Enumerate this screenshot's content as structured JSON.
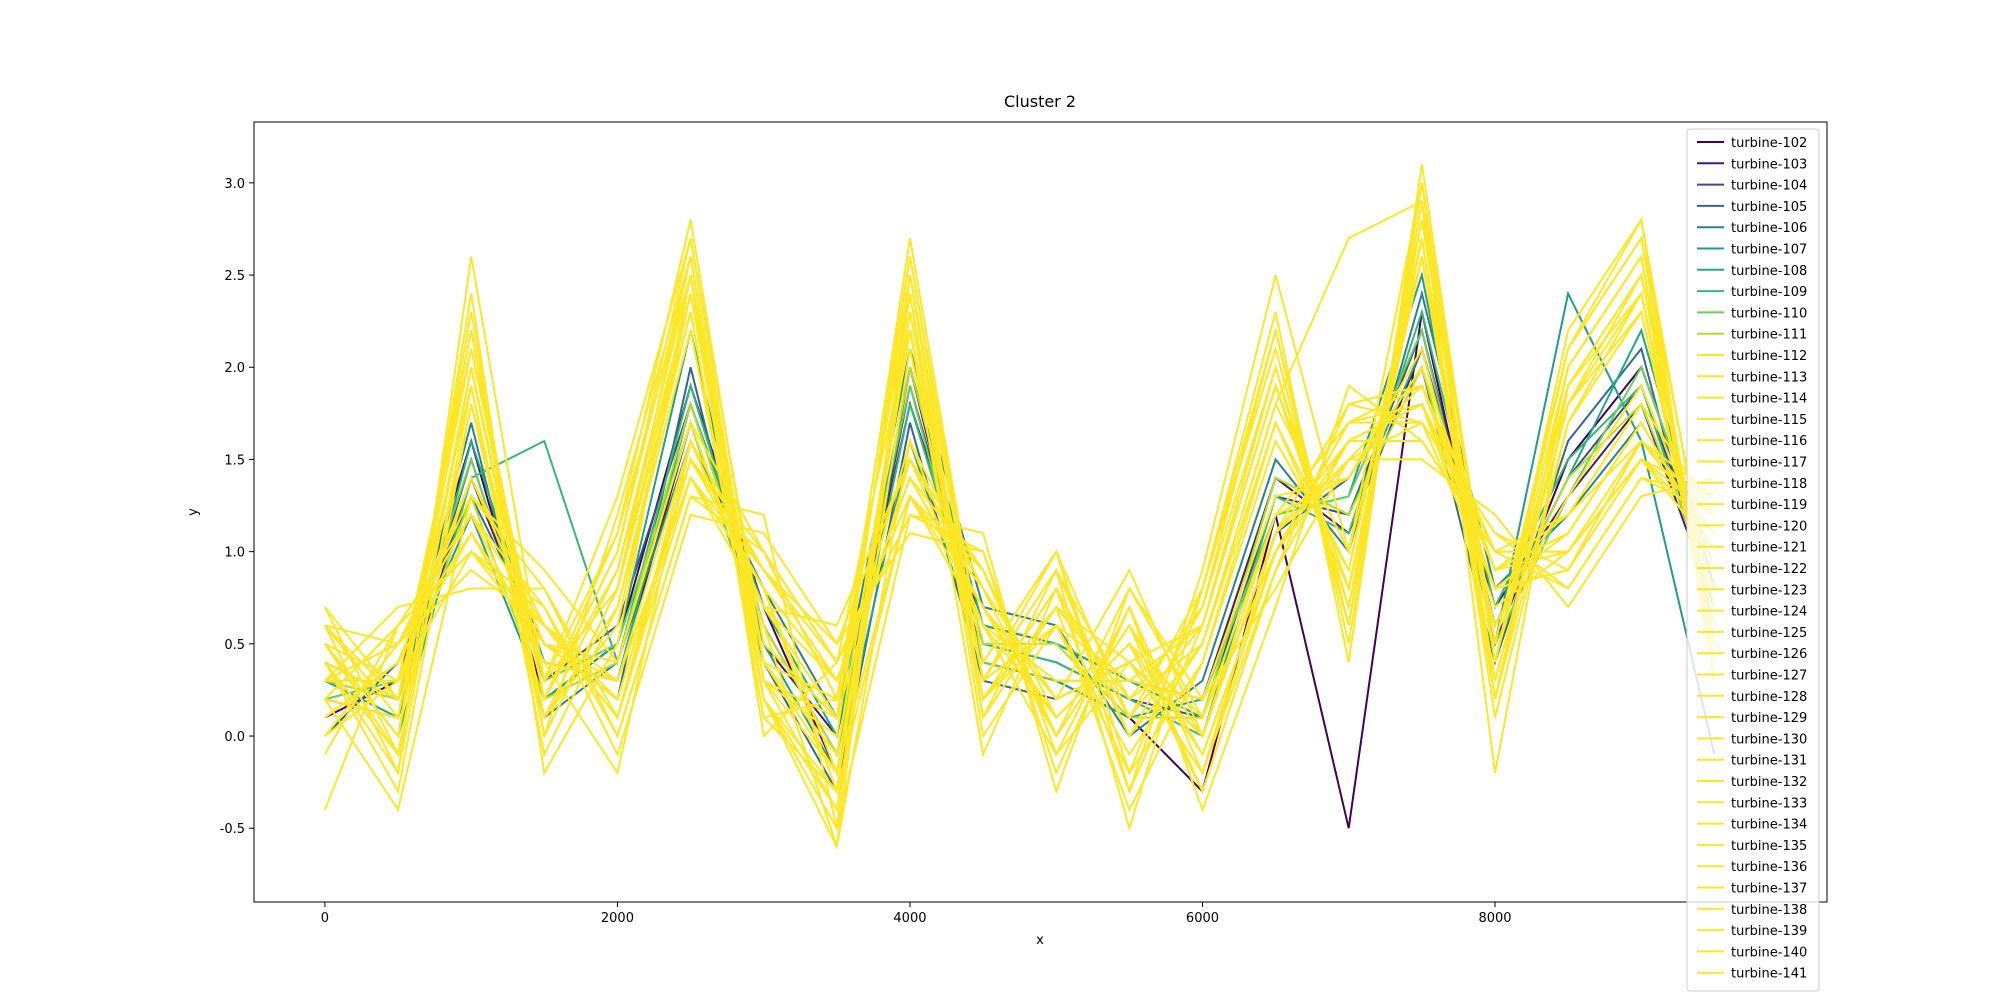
{
  "chart_data": {
    "type": "line",
    "title": "Cluster 2",
    "x_label": "x",
    "y_label": "y",
    "x": [
      0,
      500,
      1000,
      1500,
      2000,
      2500,
      3000,
      3500,
      4000,
      4500,
      5000,
      5500,
      6000,
      6500,
      7000,
      7500,
      8000,
      8500,
      9000,
      9500
    ],
    "xlim": [
      -485,
      10270
    ],
    "xticks": [
      0,
      2000,
      4000,
      6000,
      8000
    ],
    "ylim": [
      -0.9,
      3.33
    ],
    "yticks": [
      -0.5,
      {
        "value": 0,
        "label": "0.0"
      },
      0.5,
      {
        "value": 1,
        "label": "1.0"
      },
      1.5,
      {
        "value": 2,
        "label": "2.0"
      },
      2.5,
      {
        "value": 3,
        "label": "3.0"
      }
    ],
    "legend": "upper right",
    "series": [
      {
        "name": "turbine-102",
        "color": "#440154",
        "values": [
          0.1,
          0.3,
          1.6,
          0.2,
          0.5,
          1.9,
          0.7,
          -0.2,
          2.0,
          0.4,
          0.3,
          0.1,
          -0.3,
          1.2,
          -0.5,
          2.3,
          0.5,
          1.5,
          2.0,
          0.9
        ]
      },
      {
        "name": "turbine-103",
        "color": "#481a6c",
        "values": [
          0.2,
          0.1,
          1.4,
          0.4,
          0.3,
          1.7,
          0.5,
          0.0,
          1.8,
          0.6,
          0.5,
          0.3,
          0.2,
          1.4,
          1.1,
          2.1,
          0.7,
          1.3,
          1.8,
          0.7
        ]
      },
      {
        "name": "turbine-104",
        "color": "#3e4989",
        "values": [
          0.3,
          0.2,
          1.5,
          0.3,
          0.6,
          1.8,
          0.6,
          -0.1,
          1.9,
          0.5,
          0.4,
          0.2,
          0.1,
          1.3,
          1.2,
          2.2,
          0.6,
          1.4,
          1.9,
          0.8
        ]
      },
      {
        "name": "turbine-105",
        "color": "#31688e",
        "values": [
          0.0,
          0.4,
          1.3,
          0.5,
          0.2,
          2.0,
          0.4,
          -0.3,
          1.7,
          0.3,
          0.2,
          0.4,
          0.0,
          1.1,
          1.4,
          2.0,
          0.4,
          1.6,
          2.1,
          0.6
        ]
      },
      {
        "name": "turbine-106",
        "color": "#26828e",
        "values": [
          0.4,
          0.2,
          1.7,
          0.1,
          0.4,
          1.6,
          0.8,
          0.1,
          2.1,
          0.7,
          0.6,
          0.0,
          0.3,
          1.5,
          1.0,
          2.4,
          0.8,
          1.2,
          1.7,
          1.0
        ]
      },
      {
        "name": "turbine-107",
        "color": "#1f9e89",
        "values": [
          0.2,
          0.3,
          1.2,
          0.2,
          0.5,
          2.2,
          0.5,
          -0.2,
          1.6,
          0.4,
          0.3,
          0.1,
          0.2,
          1.2,
          1.3,
          2.5,
          0.5,
          2.4,
          1.6,
          -0.1
        ]
      },
      {
        "name": "turbine-108",
        "color": "#22a884",
        "values": [
          0.3,
          0.1,
          1.6,
          0.4,
          0.3,
          1.8,
          0.7,
          0.0,
          2.0,
          0.6,
          0.5,
          0.3,
          0.1,
          1.4,
          1.2,
          2.1,
          0.6,
          1.4,
          2.2,
          0.8
        ]
      },
      {
        "name": "turbine-109",
        "color": "#35b779",
        "values": [
          0.5,
          0.0,
          1.4,
          1.6,
          0.4,
          1.9,
          0.6,
          -0.1,
          1.8,
          0.5,
          0.4,
          0.2,
          0.0,
          1.3,
          1.1,
          2.3,
          0.7,
          1.5,
          1.9,
          0.7
        ]
      },
      {
        "name": "turbine-110",
        "color": "#6ece58",
        "values": [
          0.2,
          0.3,
          1.5,
          0.3,
          0.5,
          1.7,
          0.5,
          0.1,
          1.9,
          0.4,
          0.3,
          0.3,
          0.2,
          1.2,
          1.3,
          2.2,
          0.5,
          1.3,
          2.0,
          0.9
        ]
      },
      {
        "name": "turbine-111",
        "color": "#b5de2b",
        "values": [
          0.3,
          0.2,
          1.3,
          0.2,
          0.4,
          1.8,
          0.6,
          -0.1,
          2.0,
          0.5,
          0.5,
          0.1,
          0.1,
          1.4,
          1.2,
          2.0,
          0.6,
          1.4,
          1.8,
          0.8
        ]
      },
      {
        "name": "turbine-112",
        "color": "#fde725",
        "values": [
          0.4,
          -0.3,
          1.8,
          0.1,
          0.6,
          2.4,
          0.3,
          -0.4,
          2.3,
          0.2,
          0.6,
          -0.2,
          0.4,
          1.7,
          0.8,
          2.6,
          0.3,
          1.8,
          2.3,
          0.5
        ]
      },
      {
        "name": "turbine-113",
        "color": "#fde725",
        "values": [
          0.6,
          0.5,
          0.9,
          0.6,
          0.2,
          1.5,
          0.9,
          0.3,
          1.4,
          0.9,
          0.1,
          0.5,
          -0.3,
          0.9,
          1.6,
          1.8,
          0.9,
          1.0,
          1.5,
          1.2
        ]
      },
      {
        "name": "turbine-114",
        "color": "#fde725",
        "values": [
          0.2,
          0.1,
          2.2,
          0.0,
          0.8,
          2.6,
          0.2,
          -0.6,
          2.5,
          0.1,
          0.7,
          0.4,
          0.6,
          2.0,
          0.6,
          2.9,
          0.2,
          2.0,
          2.6,
          0.4
        ]
      },
      {
        "name": "turbine-115",
        "color": "#fde725",
        "values": [
          -0.4,
          0.6,
          1.0,
          0.7,
          -0.1,
          1.2,
          1.1,
          0.5,
          1.1,
          1.0,
          -0.2,
          0.7,
          -0.4,
          0.7,
          1.9,
          1.6,
          1.0,
          0.8,
          1.4,
          1.3
        ]
      },
      {
        "name": "turbine-116",
        "color": "#fde725",
        "values": [
          0.7,
          -0.1,
          2.0,
          0.2,
          1.1,
          2.8,
          0.4,
          0.2,
          2.6,
          0.3,
          0.9,
          -0.5,
          0.8,
          2.3,
          0.4,
          3.1,
          0.4,
          2.2,
          2.8,
          0.3
        ]
      },
      {
        "name": "turbine-117",
        "color": "#fde725",
        "values": [
          0.1,
          0.4,
          1.1,
          0.5,
          0.3,
          1.4,
          0.8,
          -0.2,
          1.3,
          0.7,
          0.0,
          0.6,
          -0.1,
          1.0,
          1.7,
          1.7,
          1.1,
          0.9,
          1.6,
          1.1
        ]
      },
      {
        "name": "turbine-118",
        "color": "#fde725",
        "values": [
          0.5,
          0.0,
          2.4,
          -0.2,
          0.5,
          2.5,
          0.0,
          0.4,
          2.2,
          -0.1,
          0.8,
          0.0,
          0.5,
          1.8,
          2.7,
          2.9,
          -0.2,
          1.9,
          2.5,
          0.6
        ]
      },
      {
        "name": "turbine-119",
        "color": "#fde725",
        "values": [
          0.3,
          0.7,
          0.8,
          0.8,
          0.0,
          1.3,
          1.2,
          -0.5,
          1.2,
          1.1,
          -0.3,
          0.8,
          0.2,
          0.8,
          1.5,
          1.5,
          1.2,
          0.7,
          1.3,
          1.4
        ]
      },
      {
        "name": "turbine-120",
        "color": "#fde725",
        "values": [
          0.6,
          -0.2,
          2.6,
          0.3,
          1.3,
          2.7,
          0.5,
          0.1,
          2.7,
          0.4,
          1.0,
          -0.3,
          0.9,
          2.5,
          1.0,
          3.0,
          0.5,
          2.1,
          2.7,
          0.7
        ]
      },
      {
        "name": "turbine-121",
        "color": "#fde725",
        "values": [
          0.0,
          0.5,
          1.2,
          0.4,
          -0.2,
          1.6,
          0.7,
          0.6,
          1.5,
          0.6,
          -0.1,
          0.4,
          -0.2,
          1.1,
          1.8,
          1.9,
          0.8,
          1.1,
          1.7,
          1.0
        ]
      },
      {
        "name": "turbine-122",
        "color": "#fde725",
        "values": [
          0.4,
          0.2,
          1.9,
          -0.1,
          0.7,
          2.3,
          0.1,
          -0.3,
          2.4,
          0.0,
          0.6,
          0.3,
          0.6,
          1.9,
          0.7,
          2.7,
          0.1,
          1.7,
          2.4,
          0.4
        ]
      },
      {
        "name": "turbine-123",
        "color": "#fde725",
        "values": [
          0.2,
          -0.4,
          1.3,
          0.9,
          0.4,
          1.7,
          1.0,
          0.2,
          1.6,
          0.8,
          0.2,
          0.9,
          0.0,
          1.2,
          1.4,
          2.0,
          0.9,
          1.2,
          1.8,
          1.2
        ]
      },
      {
        "name": "turbine-124",
        "color": "#fde725",
        "values": [
          0.5,
          0.3,
          2.1,
          0.2,
          0.9,
          2.5,
          0.3,
          -0.2,
          2.2,
          0.2,
          0.7,
          -0.4,
          0.4,
          1.6,
          0.9,
          2.8,
          0.4,
          1.9,
          2.5,
          0.5
        ]
      },
      {
        "name": "turbine-125",
        "color": "#fde725",
        "values": [
          -0.1,
          0.6,
          1.0,
          0.6,
          0.1,
          1.4,
          0.9,
          0.4,
          1.3,
          0.9,
          0.0,
          0.6,
          -0.3,
          0.9,
          1.6,
          1.6,
          1.0,
          1.0,
          1.5,
          1.3
        ]
      },
      {
        "name": "turbine-126",
        "color": "#fde725",
        "values": [
          0.6,
          0.1,
          2.3,
          0.0,
          1.2,
          2.6,
          0.2,
          -0.5,
          2.5,
          0.1,
          0.9,
          0.2,
          0.7,
          2.2,
          0.5,
          3.0,
          0.2,
          2.0,
          2.6,
          0.3
        ]
      },
      {
        "name": "turbine-127",
        "color": "#fde725",
        "values": [
          0.3,
          0.5,
          1.1,
          0.5,
          0.2,
          1.5,
          0.8,
          0.3,
          1.4,
          0.7,
          0.1,
          0.5,
          0.1,
          1.0,
          1.7,
          1.8,
          0.8,
          0.9,
          1.6,
          1.1
        ]
      },
      {
        "name": "turbine-128",
        "color": "#fde725",
        "values": [
          0.4,
          -0.1,
          1.8,
          0.3,
          0.8,
          2.4,
          0.4,
          -0.1,
          2.3,
          0.3,
          0.6,
          -0.1,
          0.5,
          1.8,
          1.0,
          2.6,
          0.3,
          1.8,
          2.4,
          0.6
        ]
      },
      {
        "name": "turbine-129",
        "color": "#fde725",
        "values": [
          0.1,
          0.4,
          1.4,
          0.6,
          0.3,
          1.6,
          0.7,
          0.1,
          1.5,
          0.8,
          0.2,
          0.4,
          0.0,
          1.1,
          1.5,
          1.9,
          0.9,
          1.1,
          1.7,
          1.0
        ]
      },
      {
        "name": "turbine-130",
        "color": "#fde725",
        "values": [
          0.5,
          0.0,
          2.0,
          0.1,
          0.7,
          2.2,
          0.2,
          -0.4,
          2.1,
          0.2,
          0.8,
          0.1,
          0.6,
          1.9,
          0.8,
          2.7,
          0.2,
          1.7,
          2.3,
          0.5
        ]
      },
      {
        "name": "turbine-131",
        "color": "#fde725",
        "values": [
          0.2,
          0.6,
          1.2,
          0.7,
          0.0,
          1.3,
          1.0,
          0.4,
          1.2,
          1.0,
          -0.1,
          0.7,
          -0.2,
          0.9,
          1.8,
          1.7,
          1.1,
          0.8,
          1.4,
          1.2
        ]
      },
      {
        "name": "turbine-132",
        "color": "#fde725",
        "values": [
          0.7,
          0.2,
          2.2,
          0.2,
          1.0,
          2.6,
          0.3,
          0.0,
          2.6,
          0.4,
          1.0,
          -0.2,
          0.8,
          2.1,
          0.6,
          2.9,
          0.5,
          2.1,
          2.7,
          0.4
        ]
      },
      {
        "name": "turbine-133",
        "color": "#fde725",
        "values": [
          0.0,
          0.3,
          1.0,
          0.5,
          0.2,
          1.5,
          0.8,
          -0.3,
          1.3,
          0.6,
          0.1,
          0.5,
          -0.1,
          1.0,
          1.6,
          1.8,
          0.7,
          1.0,
          1.5,
          1.1
        ]
      },
      {
        "name": "turbine-134",
        "color": "#fde725",
        "values": [
          0.4,
          -0.2,
          1.9,
          0.0,
          0.8,
          2.3,
          0.1,
          0.2,
          2.4,
          0.1,
          0.7,
          0.2,
          0.5,
          1.7,
          0.9,
          2.7,
          0.3,
          1.8,
          2.5,
          0.6
        ]
      },
      {
        "name": "turbine-135",
        "color": "#fde725",
        "values": [
          0.3,
          0.5,
          1.3,
          0.8,
          0.1,
          1.6,
          0.9,
          0.5,
          1.5,
          0.9,
          0.0,
          0.8,
          0.1,
          1.2,
          1.7,
          1.9,
          1.0,
          1.2,
          1.6,
          1.2
        ]
      },
      {
        "name": "turbine-136",
        "color": "#fde725",
        "values": [
          0.6,
          0.1,
          2.1,
          0.3,
          1.1,
          2.5,
          0.4,
          -0.2,
          2.2,
          0.3,
          0.9,
          0.0,
          0.7,
          2.0,
          0.7,
          2.8,
          0.4,
          2.0,
          2.6,
          0.5
        ]
      },
      {
        "name": "turbine-137",
        "color": "#fde725",
        "values": [
          0.1,
          0.4,
          1.1,
          0.4,
          0.3,
          1.4,
          0.7,
          0.3,
          1.4,
          0.7,
          0.2,
          0.4,
          -0.2,
          1.0,
          1.5,
          1.7,
          0.8,
          0.9,
          1.5,
          1.0
        ]
      },
      {
        "name": "turbine-138",
        "color": "#fde725",
        "values": [
          0.5,
          -0.1,
          2.0,
          0.1,
          0.9,
          2.4,
          0.2,
          -0.3,
          2.3,
          0.2,
          0.8,
          -0.3,
          0.6,
          1.9,
          0.8,
          2.6,
          0.2,
          1.9,
          2.4,
          0.4
        ]
      },
      {
        "name": "turbine-139",
        "color": "#fde725",
        "values": [
          0.2,
          0.6,
          1.2,
          0.6,
          0.1,
          1.5,
          1.0,
          0.4,
          1.3,
          0.8,
          0.0,
          0.6,
          0.0,
          1.1,
          1.6,
          1.8,
          1.0,
          1.0,
          1.6,
          1.3
        ]
      },
      {
        "name": "turbine-140",
        "color": "#fde725",
        "values": [
          0.6,
          0.2,
          2.2,
          0.2,
          1.0,
          2.7,
          0.3,
          0.1,
          2.5,
          0.3,
          1.0,
          0.1,
          0.8,
          2.2,
          0.6,
          3.0,
          0.4,
          2.1,
          2.8,
          0.6
        ]
      },
      {
        "name": "turbine-141",
        "color": "#fde725",
        "values": [
          0.3,
          0.3,
          1.4,
          0.5,
          0.4,
          1.7,
          0.6,
          -0.6,
          1.6,
          0.6,
          0.3,
          0.3,
          0.2,
          1.3,
          1.4,
          2.1,
          0.6,
          1.3,
          1.9,
          0.9
        ]
      }
    ]
  }
}
